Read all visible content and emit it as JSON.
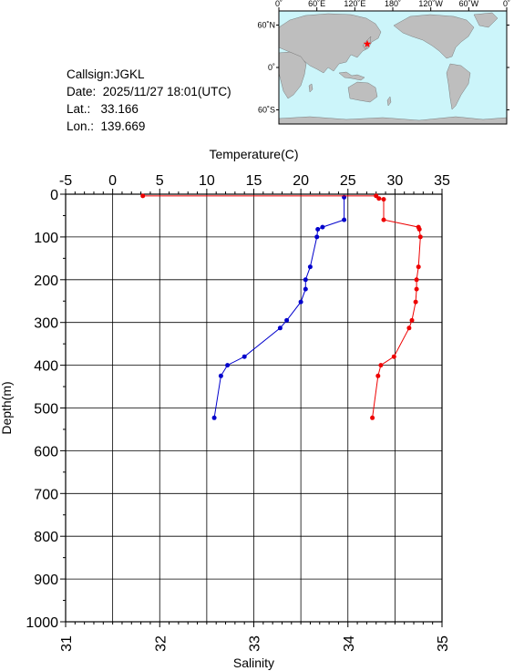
{
  "station": {
    "callsign": "Callsign:JGKL",
    "date_label": "Date:",
    "date_value": "2025/11/27 18:01(UTC)",
    "lat_label": "Lat.:",
    "lat_value": "33.166",
    "lon_label": "Lon.:",
    "lon_value": "139.669"
  },
  "map": {
    "top_labels": [
      "0˚",
      "60˚E",
      "120˚E",
      "180˚",
      "120˚W",
      "60˚W",
      "0˚"
    ],
    "side_labels": [
      "60˚N",
      "0˚",
      "60˚S"
    ],
    "ocean_color": "#ccf5fa",
    "land_color": "#bebebe",
    "marker_color": "#ff0000",
    "marker_lon": 139.669,
    "marker_lat": 33.166
  },
  "chart_data": {
    "type": "line",
    "title": "",
    "y_label": "Depth(m)",
    "y_ticks": [
      "0",
      "100",
      "200",
      "300",
      "400",
      "500",
      "600",
      "700",
      "800",
      "900",
      "1000"
    ],
    "y_range": [
      0,
      1000
    ],
    "y_inverted": true,
    "top_axis_label": "Temperature(C)",
    "top_ticks": [
      "-5",
      "0",
      "5",
      "10",
      "15",
      "20",
      "25",
      "30",
      "35"
    ],
    "top_range": [
      -5,
      35
    ],
    "bottom_axis_label": "Salinity",
    "bottom_ticks": [
      "31",
      "32",
      "33",
      "34",
      "35"
    ],
    "bottom_range": [
      31,
      35
    ],
    "grid": true,
    "series": [
      {
        "axis": "temperature",
        "color": "#0000cc",
        "points": [
          [
            24.6,
            7
          ],
          [
            24.6,
            60
          ],
          [
            22.3,
            77
          ],
          [
            21.8,
            82
          ],
          [
            21.7,
            100
          ],
          [
            21.0,
            170
          ],
          [
            20.5,
            200
          ],
          [
            20.5,
            222
          ],
          [
            20.0,
            252
          ],
          [
            18.5,
            295
          ],
          [
            17.8,
            313
          ],
          [
            14.0,
            380
          ],
          [
            12.2,
            400
          ],
          [
            11.5,
            425
          ],
          [
            10.8,
            523
          ]
        ]
      },
      {
        "axis": "salinity",
        "color": "#ee0000",
        "points": [
          [
            31.82,
            4
          ],
          [
            34.3,
            4
          ],
          [
            34.33,
            10
          ],
          [
            34.38,
            12
          ],
          [
            34.38,
            60
          ],
          [
            34.75,
            77
          ],
          [
            34.76,
            82
          ],
          [
            34.77,
            100
          ],
          [
            34.75,
            170
          ],
          [
            34.73,
            200
          ],
          [
            34.73,
            222
          ],
          [
            34.72,
            252
          ],
          [
            34.68,
            295
          ],
          [
            34.65,
            313
          ],
          [
            34.49,
            380
          ],
          [
            34.35,
            400
          ],
          [
            34.32,
            425
          ],
          [
            34.26,
            523
          ]
        ]
      }
    ]
  }
}
